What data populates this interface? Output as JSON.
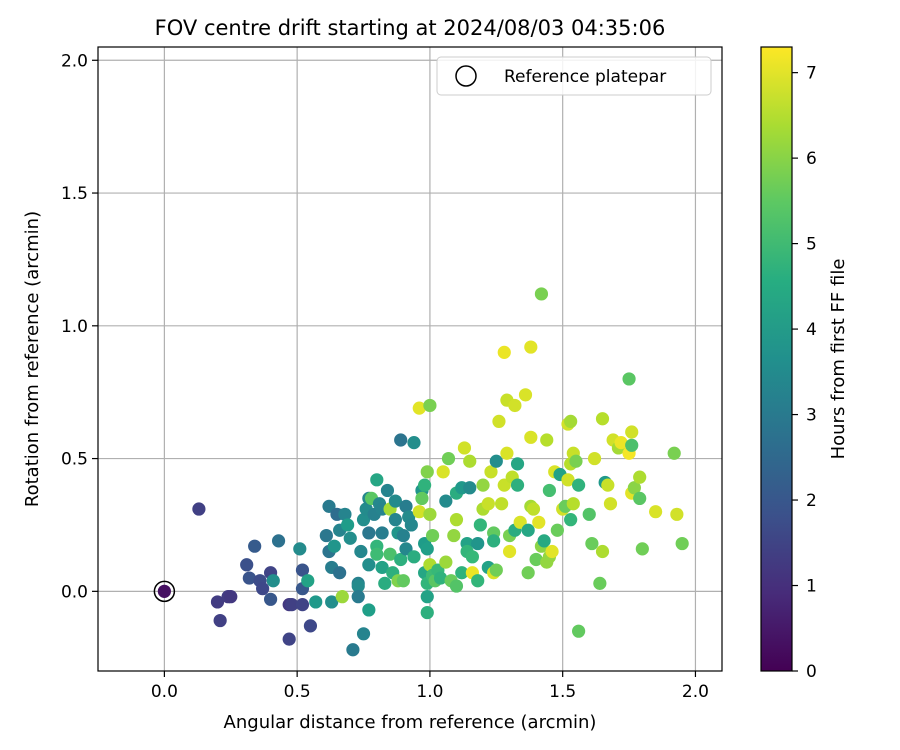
{
  "chart_data": {
    "type": "scatter",
    "title": "FOV centre drift starting at 2024/08/03 04:35:06",
    "xlabel": "Angular distance from reference (arcmin)",
    "ylabel": "Rotation from reference (arcmin)",
    "xlim": [
      -0.25,
      2.1
    ],
    "ylim": [
      -0.3,
      2.05
    ],
    "x_ticks": [
      "0.0",
      "0.5",
      "1.0",
      "1.5",
      "2.0"
    ],
    "y_ticks": [
      "0.0",
      "0.5",
      "1.0",
      "1.5",
      "2.0"
    ],
    "grid": true,
    "legend": {
      "position": "top-right",
      "entries": [
        "Reference platepar"
      ]
    },
    "colorbar": {
      "label": "Hours from first FF file",
      "colormap": "viridis",
      "range": [
        0,
        7.3
      ],
      "ticks": [
        "0",
        "1",
        "2",
        "3",
        "4",
        "5",
        "6",
        "7"
      ]
    },
    "reference_point": {
      "x": 0.0,
      "y": 0.0
    },
    "points": [
      {
        "x": 0.0,
        "y": 0.0,
        "c": 0.3
      },
      {
        "x": 0.13,
        "y": 0.31,
        "c": 1.4
      },
      {
        "x": 0.2,
        "y": -0.04,
        "c": 1.3
      },
      {
        "x": 0.21,
        "y": -0.11,
        "c": 1.4
      },
      {
        "x": 0.24,
        "y": -0.02,
        "c": 1.3
      },
      {
        "x": 0.25,
        "y": -0.02,
        "c": 1.2
      },
      {
        "x": 0.31,
        "y": 0.1,
        "c": 1.8
      },
      {
        "x": 0.32,
        "y": 0.05,
        "c": 1.9
      },
      {
        "x": 0.34,
        "y": 0.17,
        "c": 2.1
      },
      {
        "x": 0.36,
        "y": 0.04,
        "c": 1.7
      },
      {
        "x": 0.37,
        "y": 0.01,
        "c": 1.6
      },
      {
        "x": 0.4,
        "y": 0.07,
        "c": 1.5
      },
      {
        "x": 0.4,
        "y": -0.03,
        "c": 2.0
      },
      {
        "x": 0.41,
        "y": 0.04,
        "c": 3.6
      },
      {
        "x": 0.43,
        "y": 0.19,
        "c": 2.7
      },
      {
        "x": 0.47,
        "y": -0.05,
        "c": 1.2
      },
      {
        "x": 0.48,
        "y": -0.05,
        "c": 1.4
      },
      {
        "x": 0.47,
        "y": -0.18,
        "c": 1.5
      },
      {
        "x": 0.51,
        "y": 0.16,
        "c": 3.5
      },
      {
        "x": 0.52,
        "y": 0.08,
        "c": 1.9
      },
      {
        "x": 0.52,
        "y": -0.05,
        "c": 1.5
      },
      {
        "x": 0.52,
        "y": 0.01,
        "c": 2.0
      },
      {
        "x": 0.54,
        "y": 0.04,
        "c": 4.2
      },
      {
        "x": 0.55,
        "y": -0.13,
        "c": 1.6
      },
      {
        "x": 0.57,
        "y": -0.04,
        "c": 3.9
      },
      {
        "x": 0.61,
        "y": 0.21,
        "c": 2.9
      },
      {
        "x": 0.62,
        "y": 0.32,
        "c": 3.0
      },
      {
        "x": 0.62,
        "y": 0.15,
        "c": 2.8
      },
      {
        "x": 0.63,
        "y": 0.09,
        "c": 3.1
      },
      {
        "x": 0.63,
        "y": -0.04,
        "c": 3.6
      },
      {
        "x": 0.64,
        "y": 0.17,
        "c": 3.8
      },
      {
        "x": 0.65,
        "y": 0.29,
        "c": 2.6
      },
      {
        "x": 0.66,
        "y": 0.23,
        "c": 3.3
      },
      {
        "x": 0.66,
        "y": 0.07,
        "c": 2.7
      },
      {
        "x": 0.67,
        "y": -0.02,
        "c": 6.2
      },
      {
        "x": 0.68,
        "y": 0.29,
        "c": 3.3
      },
      {
        "x": 0.69,
        "y": 0.25,
        "c": 4.0
      },
      {
        "x": 0.7,
        "y": 0.2,
        "c": 3.6
      },
      {
        "x": 0.71,
        "y": -0.22,
        "c": 3.0
      },
      {
        "x": 0.73,
        "y": 0.03,
        "c": 3.2
      },
      {
        "x": 0.73,
        "y": 0.02,
        "c": 3.5
      },
      {
        "x": 0.73,
        "y": -0.02,
        "c": 3.0
      },
      {
        "x": 0.74,
        "y": 0.15,
        "c": 3.4
      },
      {
        "x": 0.75,
        "y": 0.27,
        "c": 3.6
      },
      {
        "x": 0.76,
        "y": 0.31,
        "c": 3.5
      },
      {
        "x": 0.75,
        "y": -0.16,
        "c": 3.3
      },
      {
        "x": 0.77,
        "y": 0.22,
        "c": 2.9
      },
      {
        "x": 0.77,
        "y": 0.35,
        "c": 3.4
      },
      {
        "x": 0.77,
        "y": 0.1,
        "c": 3.6
      },
      {
        "x": 0.78,
        "y": 0.35,
        "c": 5.4
      },
      {
        "x": 0.77,
        "y": -0.07,
        "c": 4.1
      },
      {
        "x": 0.79,
        "y": 0.29,
        "c": 3.2
      },
      {
        "x": 0.8,
        "y": 0.42,
        "c": 4.3
      },
      {
        "x": 0.8,
        "y": 0.17,
        "c": 4.8
      },
      {
        "x": 0.8,
        "y": 0.14,
        "c": 5.0
      },
      {
        "x": 0.81,
        "y": 0.33,
        "c": 3.4
      },
      {
        "x": 0.82,
        "y": 0.31,
        "c": 3.3
      },
      {
        "x": 0.82,
        "y": 0.22,
        "c": 3.1
      },
      {
        "x": 0.82,
        "y": 0.09,
        "c": 4.2
      },
      {
        "x": 0.83,
        "y": 0.03,
        "c": 4.5
      },
      {
        "x": 0.84,
        "y": 0.38,
        "c": 3.3
      },
      {
        "x": 0.85,
        "y": 0.31,
        "c": 6.3
      },
      {
        "x": 0.85,
        "y": 0.14,
        "c": 5.2
      },
      {
        "x": 0.86,
        "y": 0.07,
        "c": 4.6
      },
      {
        "x": 0.87,
        "y": 0.34,
        "c": 3.5
      },
      {
        "x": 0.87,
        "y": 0.27,
        "c": 3.3
      },
      {
        "x": 0.88,
        "y": 0.04,
        "c": 5.9
      },
      {
        "x": 0.88,
        "y": 0.22,
        "c": 3.8
      },
      {
        "x": 0.89,
        "y": 0.57,
        "c": 2.8
      },
      {
        "x": 0.89,
        "y": 0.12,
        "c": 4.6
      },
      {
        "x": 0.9,
        "y": 0.04,
        "c": 5.5
      },
      {
        "x": 0.9,
        "y": 0.21,
        "c": 3.2
      },
      {
        "x": 0.91,
        "y": 0.32,
        "c": 3.1
      },
      {
        "x": 0.91,
        "y": 0.16,
        "c": 3.4
      },
      {
        "x": 0.92,
        "y": 0.28,
        "c": 3.5
      },
      {
        "x": 0.93,
        "y": 0.25,
        "c": 3.4
      },
      {
        "x": 0.94,
        "y": 0.56,
        "c": 3.6
      },
      {
        "x": 0.94,
        "y": 0.13,
        "c": 4.5
      },
      {
        "x": 0.96,
        "y": 0.69,
        "c": 7.0
      },
      {
        "x": 0.96,
        "y": 0.3,
        "c": 6.8
      },
      {
        "x": 0.97,
        "y": 0.38,
        "c": 3.8
      },
      {
        "x": 0.97,
        "y": 0.35,
        "c": 5.5
      },
      {
        "x": 0.98,
        "y": 0.4,
        "c": 4.7
      },
      {
        "x": 0.98,
        "y": 0.18,
        "c": 4.0
      },
      {
        "x": 0.98,
        "y": 0.07,
        "c": 4.3
      },
      {
        "x": 0.99,
        "y": 0.45,
        "c": 5.9
      },
      {
        "x": 0.99,
        "y": -0.08,
        "c": 4.6
      },
      {
        "x": 0.99,
        "y": -0.02,
        "c": 4.2
      },
      {
        "x": 0.99,
        "y": 0.16,
        "c": 4.1
      },
      {
        "x": 0.99,
        "y": 0.03,
        "c": 4.8
      },
      {
        "x": 1.0,
        "y": 0.7,
        "c": 5.8
      },
      {
        "x": 1.0,
        "y": 0.1,
        "c": 6.4
      },
      {
        "x": 1.0,
        "y": 0.29,
        "c": 6.2
      },
      {
        "x": 1.01,
        "y": 0.21,
        "c": 5.7
      },
      {
        "x": 1.01,
        "y": 0.06,
        "c": 5.0
      },
      {
        "x": 1.02,
        "y": 0.04,
        "c": 5.4
      },
      {
        "x": 1.03,
        "y": 0.08,
        "c": 4.9
      },
      {
        "x": 1.04,
        "y": 0.05,
        "c": 4.7
      },
      {
        "x": 1.05,
        "y": 0.45,
        "c": 6.9
      },
      {
        "x": 1.06,
        "y": 0.34,
        "c": 3.5
      },
      {
        "x": 1.06,
        "y": 0.11,
        "c": 6.2
      },
      {
        "x": 1.07,
        "y": 0.5,
        "c": 5.7
      },
      {
        "x": 1.08,
        "y": 0.04,
        "c": 5.6
      },
      {
        "x": 1.09,
        "y": 0.21,
        "c": 6.1
      },
      {
        "x": 1.1,
        "y": 0.37,
        "c": 4.5
      },
      {
        "x": 1.1,
        "y": 0.27,
        "c": 6.4
      },
      {
        "x": 1.1,
        "y": 0.02,
        "c": 5.3
      },
      {
        "x": 1.12,
        "y": 0.39,
        "c": 3.9
      },
      {
        "x": 1.12,
        "y": 0.07,
        "c": 4.7
      },
      {
        "x": 1.13,
        "y": 0.54,
        "c": 6.8
      },
      {
        "x": 1.14,
        "y": 0.18,
        "c": 4.2
      },
      {
        "x": 1.14,
        "y": 0.15,
        "c": 4.8
      },
      {
        "x": 1.15,
        "y": 0.49,
        "c": 6.4
      },
      {
        "x": 1.15,
        "y": 0.39,
        "c": 3.5
      },
      {
        "x": 1.16,
        "y": 0.07,
        "c": 7.1
      },
      {
        "x": 1.16,
        "y": 0.13,
        "c": 4.9
      },
      {
        "x": 1.18,
        "y": 0.18,
        "c": 3.8
      },
      {
        "x": 1.18,
        "y": 0.04,
        "c": 4.8
      },
      {
        "x": 1.19,
        "y": 0.25,
        "c": 4.8
      },
      {
        "x": 1.2,
        "y": 0.4,
        "c": 6.1
      },
      {
        "x": 1.2,
        "y": 0.31,
        "c": 6.4
      },
      {
        "x": 1.22,
        "y": 0.33,
        "c": 6.7
      },
      {
        "x": 1.22,
        "y": 0.09,
        "c": 4.2
      },
      {
        "x": 1.23,
        "y": 0.45,
        "c": 6.7
      },
      {
        "x": 1.24,
        "y": 0.22,
        "c": 5.5
      },
      {
        "x": 1.24,
        "y": 0.19,
        "c": 4.6
      },
      {
        "x": 1.24,
        "y": 0.07,
        "c": 6.9
      },
      {
        "x": 1.25,
        "y": 0.49,
        "c": 3.6
      },
      {
        "x": 1.25,
        "y": 0.08,
        "c": 5.7
      },
      {
        "x": 1.26,
        "y": 0.64,
        "c": 6.8
      },
      {
        "x": 1.27,
        "y": 0.33,
        "c": 6.6
      },
      {
        "x": 1.28,
        "y": 0.9,
        "c": 7.1
      },
      {
        "x": 1.28,
        "y": 0.4,
        "c": 6.7
      },
      {
        "x": 1.29,
        "y": 0.72,
        "c": 6.7
      },
      {
        "x": 1.29,
        "y": 0.52,
        "c": 6.9
      },
      {
        "x": 1.3,
        "y": 0.21,
        "c": 5.8
      },
      {
        "x": 1.3,
        "y": 0.15,
        "c": 7.0
      },
      {
        "x": 1.31,
        "y": 0.43,
        "c": 6.6
      },
      {
        "x": 1.32,
        "y": 0.7,
        "c": 6.8
      },
      {
        "x": 1.32,
        "y": 0.23,
        "c": 4.5
      },
      {
        "x": 1.33,
        "y": 0.48,
        "c": 4.3
      },
      {
        "x": 1.33,
        "y": 0.4,
        "c": 4.6
      },
      {
        "x": 1.34,
        "y": 0.26,
        "c": 6.9
      },
      {
        "x": 1.36,
        "y": 0.74,
        "c": 6.9
      },
      {
        "x": 1.37,
        "y": 0.07,
        "c": 5.7
      },
      {
        "x": 1.37,
        "y": 0.23,
        "c": 4.3
      },
      {
        "x": 1.38,
        "y": 0.92,
        "c": 7.0
      },
      {
        "x": 1.38,
        "y": 0.58,
        "c": 6.9
      },
      {
        "x": 1.38,
        "y": 0.32,
        "c": 6.3
      },
      {
        "x": 1.39,
        "y": 0.31,
        "c": 6.6
      },
      {
        "x": 1.4,
        "y": 0.12,
        "c": 5.6
      },
      {
        "x": 1.41,
        "y": 0.26,
        "c": 7.0
      },
      {
        "x": 1.42,
        "y": 1.12,
        "c": 5.8
      },
      {
        "x": 1.42,
        "y": 0.17,
        "c": 6.0
      },
      {
        "x": 1.43,
        "y": 0.19,
        "c": 4.4
      },
      {
        "x": 1.44,
        "y": 0.11,
        "c": 6.1
      },
      {
        "x": 1.44,
        "y": 0.57,
        "c": 6.5
      },
      {
        "x": 1.45,
        "y": 0.38,
        "c": 5.1
      },
      {
        "x": 1.45,
        "y": 0.13,
        "c": 6.1
      },
      {
        "x": 1.46,
        "y": 0.15,
        "c": 7.0
      },
      {
        "x": 1.47,
        "y": 0.45,
        "c": 6.9
      },
      {
        "x": 1.48,
        "y": 0.23,
        "c": 5.6
      },
      {
        "x": 1.49,
        "y": 0.44,
        "c": 4.2
      },
      {
        "x": 1.5,
        "y": 0.31,
        "c": 6.8
      },
      {
        "x": 1.51,
        "y": 0.32,
        "c": 5.6
      },
      {
        "x": 1.52,
        "y": 0.42,
        "c": 6.8
      },
      {
        "x": 1.52,
        "y": 0.63,
        "c": 6.8
      },
      {
        "x": 1.53,
        "y": 0.64,
        "c": 6.3
      },
      {
        "x": 1.53,
        "y": 0.48,
        "c": 6.5
      },
      {
        "x": 1.53,
        "y": 0.27,
        "c": 4.8
      },
      {
        "x": 1.54,
        "y": 0.52,
        "c": 6.7
      },
      {
        "x": 1.54,
        "y": 0.33,
        "c": 6.5
      },
      {
        "x": 1.55,
        "y": 0.49,
        "c": 5.8
      },
      {
        "x": 1.56,
        "y": -0.15,
        "c": 5.5
      },
      {
        "x": 1.56,
        "y": 0.4,
        "c": 4.7
      },
      {
        "x": 1.6,
        "y": 0.29,
        "c": 5.3
      },
      {
        "x": 1.61,
        "y": 0.18,
        "c": 5.6
      },
      {
        "x": 1.62,
        "y": 0.5,
        "c": 6.8
      },
      {
        "x": 1.64,
        "y": 0.03,
        "c": 5.6
      },
      {
        "x": 1.65,
        "y": 0.65,
        "c": 6.5
      },
      {
        "x": 1.65,
        "y": 0.15,
        "c": 6.4
      },
      {
        "x": 1.66,
        "y": 0.41,
        "c": 3.9
      },
      {
        "x": 1.67,
        "y": 0.4,
        "c": 6.7
      },
      {
        "x": 1.68,
        "y": 0.33,
        "c": 6.8
      },
      {
        "x": 1.69,
        "y": 0.57,
        "c": 6.8
      },
      {
        "x": 1.71,
        "y": 0.54,
        "c": 6.3
      },
      {
        "x": 1.72,
        "y": 0.56,
        "c": 7.1
      },
      {
        "x": 1.75,
        "y": 0.52,
        "c": 7.2
      },
      {
        "x": 1.75,
        "y": 0.8,
        "c": 5.4
      },
      {
        "x": 1.76,
        "y": 0.6,
        "c": 6.8
      },
      {
        "x": 1.76,
        "y": 0.55,
        "c": 5.2
      },
      {
        "x": 1.76,
        "y": 0.37,
        "c": 7.0
      },
      {
        "x": 1.77,
        "y": 0.39,
        "c": 6.0
      },
      {
        "x": 1.79,
        "y": 0.43,
        "c": 6.4
      },
      {
        "x": 1.79,
        "y": 0.35,
        "c": 5.4
      },
      {
        "x": 1.8,
        "y": 0.16,
        "c": 5.7
      },
      {
        "x": 1.85,
        "y": 0.3,
        "c": 6.9
      },
      {
        "x": 1.92,
        "y": 0.52,
        "c": 5.8
      },
      {
        "x": 1.93,
        "y": 0.29,
        "c": 6.8
      },
      {
        "x": 1.95,
        "y": 0.18,
        "c": 5.7
      }
    ]
  }
}
